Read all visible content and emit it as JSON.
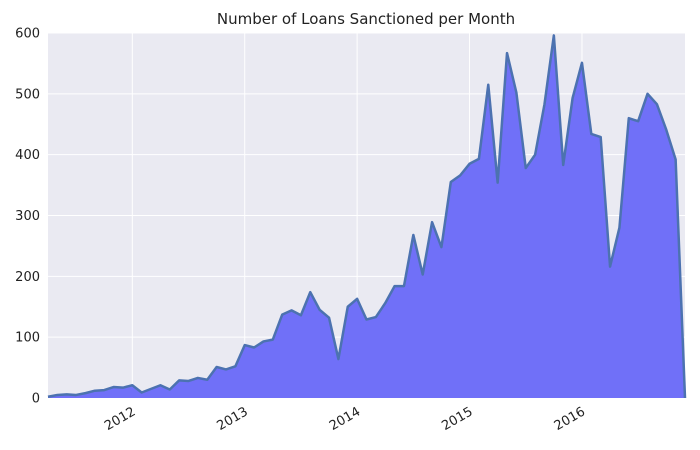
{
  "chart_data": {
    "type": "area",
    "title": "Number of Loans Sanctioned per Month",
    "xlabel": "",
    "ylabel": "",
    "ylim": [
      0,
      600
    ],
    "yticks": [
      0,
      100,
      200,
      300,
      400,
      500,
      600
    ],
    "xticks": [
      {
        "label": "2012",
        "date": "2012-01"
      },
      {
        "label": "2013",
        "date": "2013-01"
      },
      {
        "label": "2014",
        "date": "2014-01"
      },
      {
        "label": "2015",
        "date": "2015-01"
      },
      {
        "label": "2016",
        "date": "2016-01"
      }
    ],
    "grid": true,
    "colors": {
      "fill": "#7070f8",
      "line": "#4c72b0",
      "plot_bg": "#eaeaf2",
      "grid": "#ffffff"
    },
    "series": [
      {
        "x": [
          "2011-04",
          "2011-05",
          "2011-06",
          "2011-07",
          "2011-08",
          "2011-09",
          "2011-10",
          "2011-11",
          "2011-12",
          "2012-01",
          "2012-02",
          "2012-03",
          "2012-04",
          "2012-05",
          "2012-06",
          "2012-07",
          "2012-08",
          "2012-09",
          "2012-10",
          "2012-11",
          "2012-12",
          "2013-01",
          "2013-02",
          "2013-03",
          "2013-04",
          "2013-05",
          "2013-06",
          "2013-07",
          "2013-08",
          "2013-09",
          "2013-10",
          "2013-11",
          "2013-12",
          "2014-01",
          "2014-02",
          "2014-03",
          "2014-04",
          "2014-05",
          "2014-06",
          "2014-07",
          "2014-08",
          "2014-09",
          "2014-10",
          "2014-11",
          "2014-12",
          "2015-01",
          "2015-02",
          "2015-03",
          "2015-04",
          "2015-05",
          "2015-06",
          "2015-07",
          "2015-08",
          "2015-09",
          "2015-10",
          "2015-11",
          "2015-12",
          "2016-01",
          "2016-02",
          "2016-03",
          "2016-04",
          "2016-05",
          "2016-06",
          "2016-07",
          "2016-08",
          "2016-09",
          "2016-10",
          "2016-11",
          "2016-12"
        ],
        "values": [
          2,
          5,
          6,
          5,
          8,
          12,
          13,
          18,
          17,
          21,
          9,
          15,
          21,
          14,
          29,
          28,
          33,
          30,
          51,
          47,
          52,
          87,
          83,
          93,
          96,
          137,
          144,
          136,
          174,
          145,
          132,
          64,
          150,
          163,
          129,
          133,
          156,
          184,
          184,
          268,
          203,
          289,
          248,
          355,
          366,
          385,
          393,
          515,
          354,
          567,
          502,
          378,
          400,
          483,
          596,
          383,
          493,
          551,
          434,
          429,
          216,
          280,
          460,
          455,
          500,
          483,
          441,
          392,
          0
        ]
      }
    ]
  }
}
